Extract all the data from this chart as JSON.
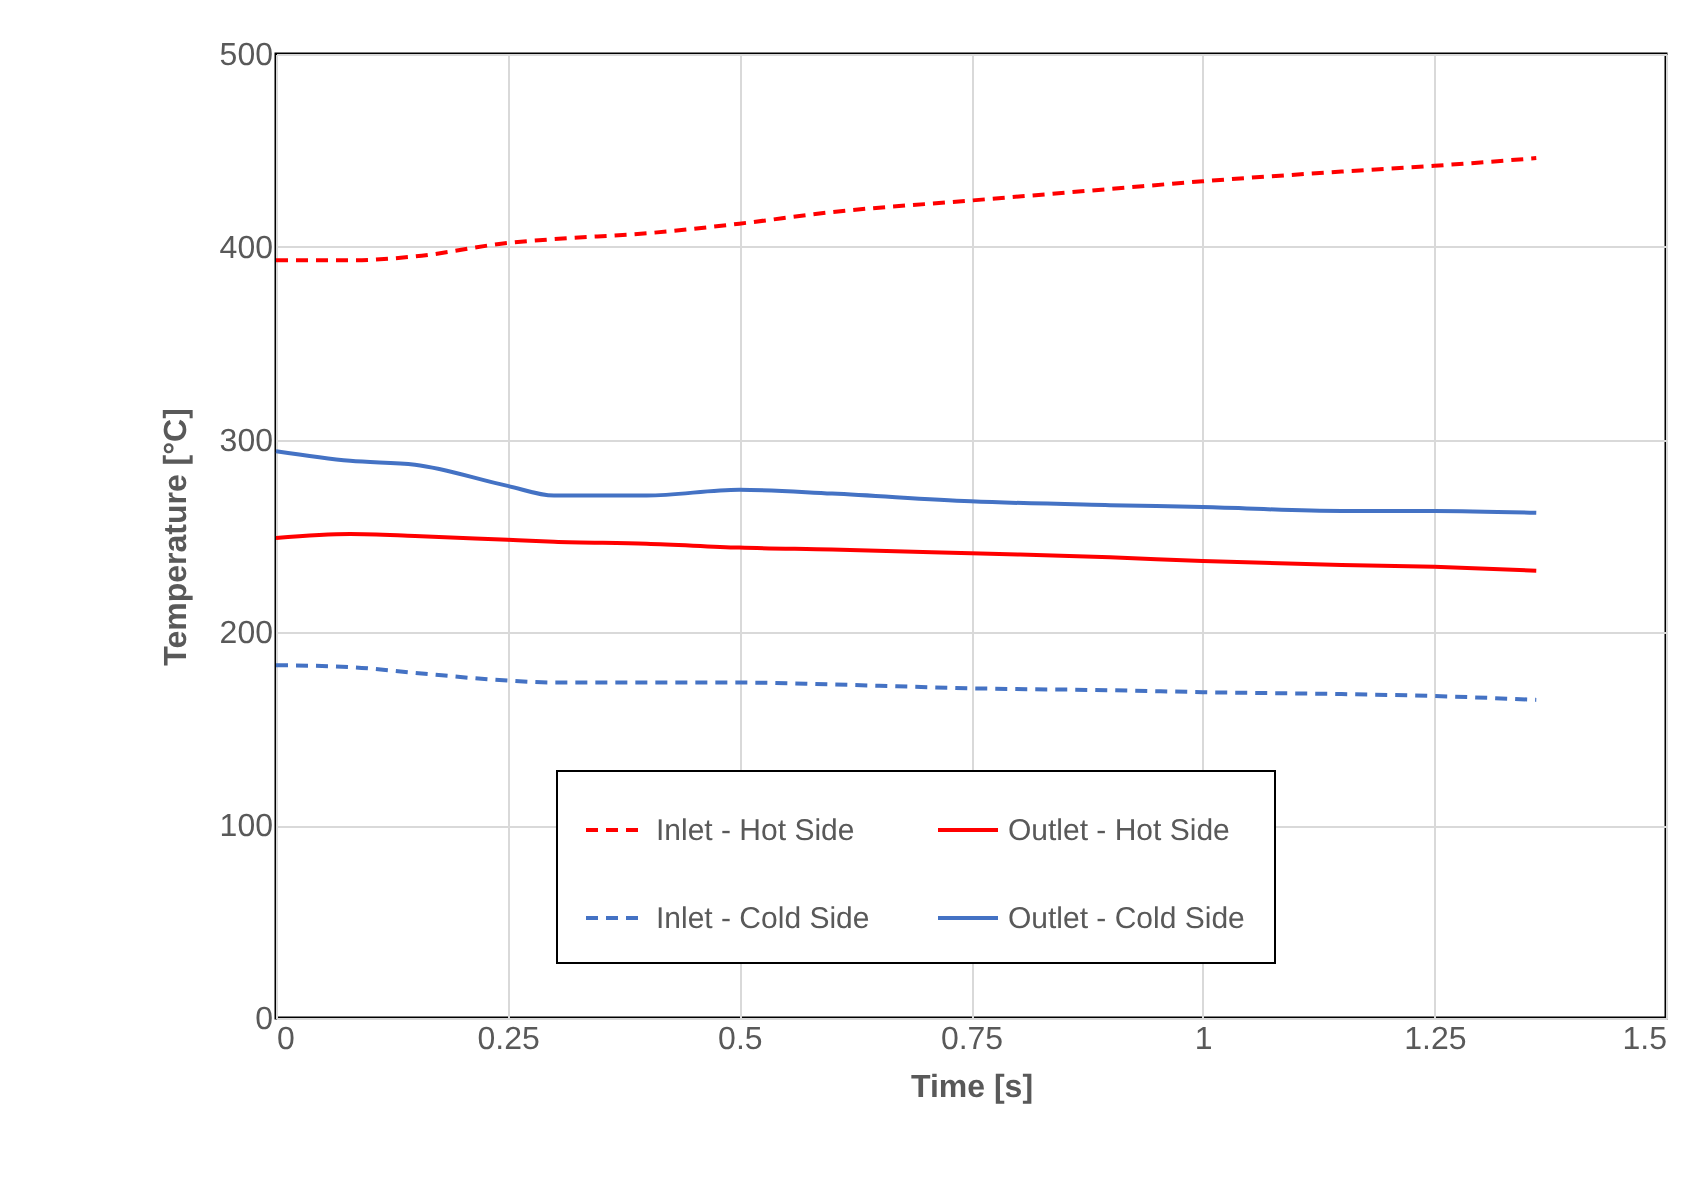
{
  "chart_data": {
    "type": "line",
    "xlabel": "Time [s]",
    "ylabel": "Temperature [°C]",
    "xlim": [
      0,
      1.5
    ],
    "xticks": [
      0,
      0.25,
      0.5,
      0.75,
      1,
      1.25,
      1.5
    ],
    "ylim": [
      0,
      500
    ],
    "yticks": [
      0,
      100,
      200,
      300,
      400,
      500
    ],
    "grid": true,
    "legend": "bottom",
    "marker": "none",
    "x": [
      0,
      0.08,
      0.15,
      0.25,
      0.3,
      0.4,
      0.5,
      0.6,
      0.75,
      0.9,
      1.0,
      1.15,
      1.25,
      1.36
    ],
    "series": [
      {
        "name": "Inlet - Hot Side",
        "color": "#ff0000",
        "line_style": "dashed",
        "values": [
          393,
          393,
          395,
          402,
          404,
          407,
          412,
          418,
          424,
          430,
          434,
          439,
          442,
          446
        ]
      },
      {
        "name": "Outlet - Hot Side",
        "color": "#ff0000",
        "line_style": "solid",
        "values": [
          249,
          251,
          250,
          248,
          247,
          246,
          244,
          243,
          241,
          239,
          237,
          235,
          234,
          232
        ]
      },
      {
        "name": "Inlet - Cold Side",
        "color": "#4472c4",
        "line_style": "dashed",
        "values": [
          183,
          182,
          179,
          175,
          174,
          174,
          174,
          173,
          171,
          170,
          169,
          168,
          167,
          165
        ]
      },
      {
        "name": "Outlet - Cold Side",
        "color": "#4472c4",
        "line_style": "solid",
        "values": [
          294,
          289,
          287,
          276,
          271,
          271,
          274,
          272,
          268,
          266,
          265,
          263,
          263,
          262
        ]
      }
    ]
  }
}
